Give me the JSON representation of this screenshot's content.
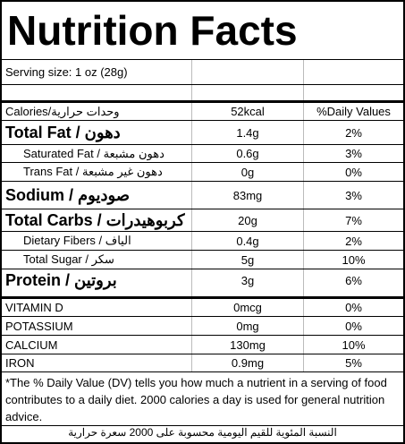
{
  "title": "Nutrition Facts",
  "serving_size": "Serving size: 1 oz (28g)",
  "table": {
    "rows": [
      [
        "Calories/وحدات حرارية",
        "52kcal",
        "%Daily Values"
      ],
      [
        "Total Fat / دهون",
        "1.4g",
        "2%"
      ],
      [
        "Saturated Fat / دهون مشبعة",
        "0.6g",
        "3%"
      ],
      [
        "Trans Fat / دهون غير مشبعة",
        "0g",
        "0%"
      ],
      [
        "Sodium / صوديوم",
        "83mg",
        "3%"
      ],
      [
        "Total Carbs / كربوهيدرات",
        "20g",
        "7%"
      ],
      [
        "Dietary Fibers / الياف",
        "0.4g",
        "2%"
      ],
      [
        "Total Sugar / سكر",
        "5g",
        "10%"
      ],
      [
        "Protein / بروتين",
        "3g",
        "6%"
      ],
      [
        "VITAMIN D",
        "0mcg",
        "0%"
      ],
      [
        "POTASSIUM",
        "0mg",
        "0%"
      ],
      [
        "CALCIUM",
        "130mg",
        "10%"
      ],
      [
        "IRON",
        "0.9mg",
        "5%"
      ]
    ]
  },
  "footnote": "*The % Daily Value (DV) tells you how much a nutrient in a serving of food contributes to a daily diet. 2000 calories a day is used for general nutrition advice.",
  "arabic_note": "النسبة المئوية للقيم اليومية محسوبة على 2000 سعرة حرارية"
}
